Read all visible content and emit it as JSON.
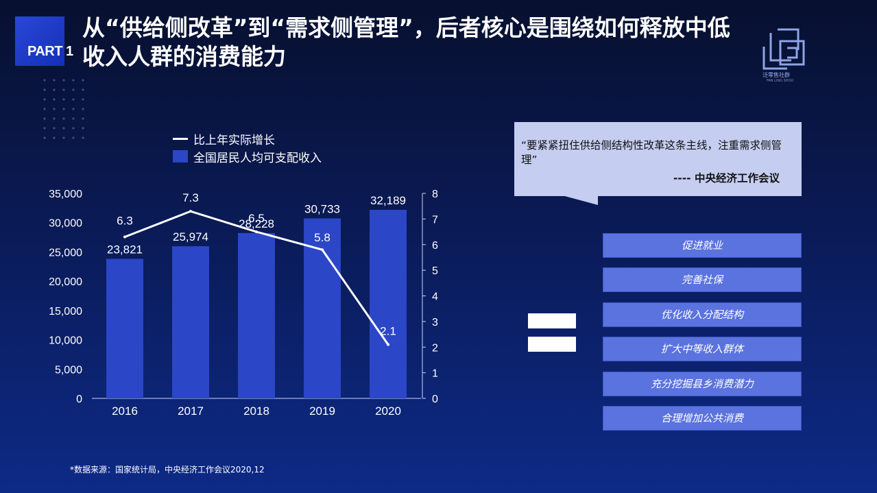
{
  "header": {
    "part_label": "PART 1",
    "title": "从“供给侧改革”到“需求侧管理”，后者核心是围绕如何释放中低收入人群的消费能力",
    "logo_text": "泛零售社群",
    "logo_sub": "FAN LING SHOU",
    "logo_icon": "cube-logo-icon"
  },
  "legend": {
    "line_label": "比上年实际增长",
    "bar_label": "全国居民人均可支配收入"
  },
  "colors": {
    "bar": "#2b46c6",
    "line": "#ffffff",
    "measure_box": "#5a73de",
    "quote_bg": "#c5cdf0"
  },
  "chart_data": {
    "type": "bar",
    "categories": [
      "2016",
      "2017",
      "2018",
      "2019",
      "2020"
    ],
    "series": [
      {
        "name": "全国居民人均可支配收入",
        "type": "bar",
        "axis": "left",
        "values": [
          23821,
          25974,
          28228,
          30733,
          32189
        ],
        "value_labels": [
          "23,821",
          "25,974",
          "28,228",
          "30,733",
          "32,189"
        ]
      },
      {
        "name": "比上年实际增长",
        "type": "line",
        "axis": "right",
        "values": [
          6.3,
          7.3,
          6.5,
          5.8,
          2.1
        ],
        "value_labels": [
          "6.3",
          "7.3",
          "6.5",
          "5.8",
          "2.1"
        ]
      }
    ],
    "ylim_left": [
      0,
      35000
    ],
    "yticks_left": [
      "0",
      "5,000",
      "10,000",
      "15,000",
      "20,000",
      "25,000",
      "30,000",
      "35,000"
    ],
    "ylim_right": [
      0,
      8
    ],
    "yticks_right": [
      "0",
      "1",
      "2",
      "3",
      "4",
      "5",
      "6",
      "7",
      "8"
    ],
    "grid": false,
    "legend_position": "top-left"
  },
  "quote": {
    "text": "“要紧紧扭住供给侧结构性改革这条主线，注重需求侧管理”",
    "source": "----  中央经济工作会议"
  },
  "measures": [
    "促进就业",
    "完善社保",
    "优化收入分配结构",
    "扩大中等收入群体",
    "充分挖掘县乡消费潜力",
    "合理增加公共消费"
  ],
  "footnote": "*数据来源：国家统计局，中央经济工作会议2020,12"
}
